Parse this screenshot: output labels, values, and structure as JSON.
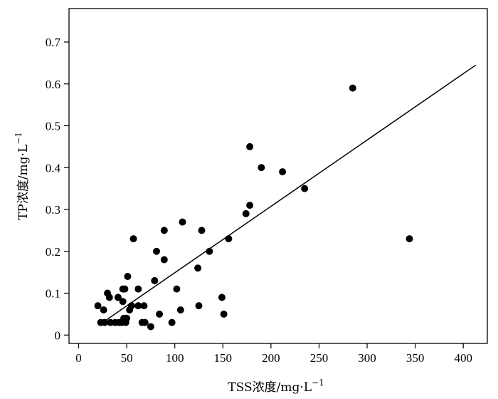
{
  "chart_data": {
    "type": "scatter",
    "xlabel": "TSS浓度/mg·L",
    "xlabel_superscript": "−1",
    "ylabel": "TP浓度/mg·L",
    "ylabel_superscript": "−1",
    "xlim": [
      -10,
      425
    ],
    "ylim": [
      -0.02,
      0.78
    ],
    "xticks": [
      0,
      50,
      100,
      150,
      200,
      250,
      300,
      350,
      400
    ],
    "yticks": [
      0,
      0.1,
      0.2,
      0.3,
      0.4,
      0.5,
      0.6,
      0.7
    ],
    "ytick_labels": [
      "0",
      "0.1",
      "0.2",
      "0.3",
      "0.4",
      "0.5",
      "0.6",
      "0.7"
    ],
    "grid": false,
    "legend": "none",
    "marker_color": "#000000",
    "points": [
      {
        "x": 20,
        "y": 0.07
      },
      {
        "x": 23,
        "y": 0.03
      },
      {
        "x": 26,
        "y": 0.06
      },
      {
        "x": 27,
        "y": 0.03
      },
      {
        "x": 30,
        "y": 0.1
      },
      {
        "x": 32,
        "y": 0.09
      },
      {
        "x": 33,
        "y": 0.03
      },
      {
        "x": 38,
        "y": 0.03
      },
      {
        "x": 41,
        "y": 0.09
      },
      {
        "x": 42,
        "y": 0.03
      },
      {
        "x": 45,
        "y": 0.03
      },
      {
        "x": 46,
        "y": 0.08
      },
      {
        "x": 46,
        "y": 0.11
      },
      {
        "x": 47,
        "y": 0.04
      },
      {
        "x": 48,
        "y": 0.11
      },
      {
        "x": 49,
        "y": 0.03
      },
      {
        "x": 50,
        "y": 0.04
      },
      {
        "x": 51,
        "y": 0.14
      },
      {
        "x": 53,
        "y": 0.06
      },
      {
        "x": 55,
        "y": 0.07
      },
      {
        "x": 57,
        "y": 0.23
      },
      {
        "x": 62,
        "y": 0.11
      },
      {
        "x": 62,
        "y": 0.07
      },
      {
        "x": 66,
        "y": 0.03
      },
      {
        "x": 68,
        "y": 0.07
      },
      {
        "x": 69,
        "y": 0.03
      },
      {
        "x": 75,
        "y": 0.02
      },
      {
        "x": 79,
        "y": 0.13
      },
      {
        "x": 81,
        "y": 0.2
      },
      {
        "x": 84,
        "y": 0.05
      },
      {
        "x": 89,
        "y": 0.25
      },
      {
        "x": 89,
        "y": 0.18
      },
      {
        "x": 97,
        "y": 0.03
      },
      {
        "x": 102,
        "y": 0.11
      },
      {
        "x": 106,
        "y": 0.06
      },
      {
        "x": 108,
        "y": 0.27
      },
      {
        "x": 124,
        "y": 0.16
      },
      {
        "x": 125,
        "y": 0.07
      },
      {
        "x": 128,
        "y": 0.25
      },
      {
        "x": 136,
        "y": 0.2
      },
      {
        "x": 149,
        "y": 0.09
      },
      {
        "x": 151,
        "y": 0.05
      },
      {
        "x": 156,
        "y": 0.23
      },
      {
        "x": 174,
        "y": 0.29
      },
      {
        "x": 178,
        "y": 0.31
      },
      {
        "x": 178,
        "y": 0.45
      },
      {
        "x": 190,
        "y": 0.4
      },
      {
        "x": 212,
        "y": 0.39
      },
      {
        "x": 235,
        "y": 0.35
      },
      {
        "x": 285,
        "y": 0.59
      },
      {
        "x": 344,
        "y": 0.23
      }
    ],
    "fit_line": {
      "x": [
        25,
        413
      ],
      "y": [
        0.03,
        0.645
      ]
    }
  }
}
